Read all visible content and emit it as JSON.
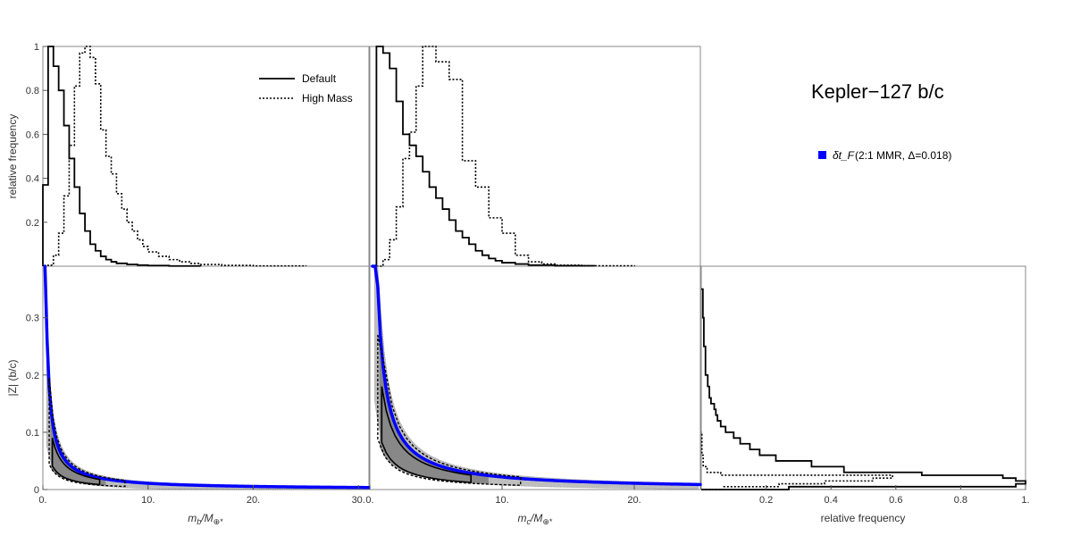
{
  "chart_data": [
    {
      "id": "hist_mb",
      "type": "histogram",
      "ylabel": "relative frequency",
      "xlim": [
        0,
        31
      ],
      "ylim": [
        0,
        1.0
      ],
      "yticks": [
        "0.2",
        "0.4",
        "0.6",
        "0.8",
        "1"
      ],
      "legend": [
        "Default",
        "High Mass"
      ],
      "series": [
        {
          "name": "Default",
          "style": "solid",
          "bins": [
            [
              0,
              0.5,
              0.37
            ],
            [
              0.5,
              1,
              1.0
            ],
            [
              1,
              1.5,
              0.91
            ],
            [
              1.5,
              2,
              0.8
            ],
            [
              2,
              2.5,
              0.64
            ],
            [
              2.5,
              3,
              0.49
            ],
            [
              3,
              3.5,
              0.36
            ],
            [
              3.5,
              4,
              0.24
            ],
            [
              4,
              4.5,
              0.16
            ],
            [
              4.5,
              5,
              0.1
            ],
            [
              5,
              5.5,
              0.07
            ],
            [
              5.5,
              6,
              0.045
            ],
            [
              6,
              6.5,
              0.03
            ],
            [
              6.5,
              7,
              0.02
            ],
            [
              7,
              8,
              0.013
            ],
            [
              8,
              9,
              0.008
            ],
            [
              9,
              10,
              0.005
            ],
            [
              10,
              12,
              0.003
            ],
            [
              12,
              15,
              0.001
            ]
          ]
        },
        {
          "name": "High Mass",
          "style": "dotted",
          "bins": [
            [
              0.5,
              1,
              0.005
            ],
            [
              1,
              1.5,
              0.05
            ],
            [
              1.5,
              2,
              0.15
            ],
            [
              2,
              2.5,
              0.32
            ],
            [
              2.5,
              3,
              0.55
            ],
            [
              3,
              3.5,
              0.82
            ],
            [
              3.5,
              4,
              0.97
            ],
            [
              4,
              4.5,
              1.0
            ],
            [
              4.5,
              5,
              0.95
            ],
            [
              5,
              5.5,
              0.83
            ],
            [
              5.5,
              6,
              0.62
            ],
            [
              6,
              6.5,
              0.5
            ],
            [
              6.5,
              7,
              0.42
            ],
            [
              7,
              7.5,
              0.33
            ],
            [
              7.5,
              8,
              0.26
            ],
            [
              8,
              8.5,
              0.2
            ],
            [
              8.5,
              9,
              0.16
            ],
            [
              9,
              9.5,
              0.12
            ],
            [
              9.5,
              10,
              0.09
            ],
            [
              10,
              11,
              0.065
            ],
            [
              11,
              12,
              0.045
            ],
            [
              12,
              13,
              0.03
            ],
            [
              13,
              14,
              0.02
            ],
            [
              14,
              15,
              0.013
            ],
            [
              15,
              17,
              0.008
            ],
            [
              17,
              20,
              0.004
            ],
            [
              20,
              25,
              0.0015
            ]
          ]
        }
      ]
    },
    {
      "id": "hist_mc",
      "type": "histogram",
      "xlim": [
        0,
        25
      ],
      "ylim": [
        0,
        1.0
      ],
      "series": [
        {
          "name": "Default",
          "style": "solid",
          "bins": [
            [
              0.5,
              1,
              1.0
            ],
            [
              1,
              1.5,
              0.97
            ],
            [
              1.5,
              2,
              0.9
            ],
            [
              2,
              2.5,
              0.75
            ],
            [
              2.5,
              3,
              0.6
            ],
            [
              3,
              3.5,
              0.55
            ],
            [
              3.5,
              4,
              0.5
            ],
            [
              4,
              4.5,
              0.43
            ],
            [
              4.5,
              5,
              0.36
            ],
            [
              5,
              5.5,
              0.31
            ],
            [
              5.5,
              6,
              0.26
            ],
            [
              6,
              6.5,
              0.21
            ],
            [
              6.5,
              7,
              0.16
            ],
            [
              7,
              7.5,
              0.13
            ],
            [
              7.5,
              8,
              0.1
            ],
            [
              8,
              8.5,
              0.07
            ],
            [
              8.5,
              9,
              0.05
            ],
            [
              9,
              9.5,
              0.035
            ],
            [
              9.5,
              10,
              0.025
            ],
            [
              10,
              11,
              0.016
            ],
            [
              11,
              12,
              0.01
            ],
            [
              12,
              14,
              0.005
            ],
            [
              14,
              17,
              0.002
            ]
          ]
        },
        {
          "name": "High Mass",
          "style": "dotted",
          "bins": [
            [
              0.5,
              1,
              0.0
            ],
            [
              1,
              1.5,
              0.03
            ],
            [
              1.5,
              2,
              0.12
            ],
            [
              2,
              2.5,
              0.27
            ],
            [
              2.5,
              3,
              0.49
            ],
            [
              3,
              3.5,
              0.61
            ],
            [
              3.5,
              4,
              0.82
            ],
            [
              4,
              5,
              1.0
            ],
            [
              5,
              6,
              0.93
            ],
            [
              6,
              7,
              0.85
            ],
            [
              7,
              8,
              0.48
            ],
            [
              8,
              9,
              0.36
            ],
            [
              9,
              10,
              0.22
            ],
            [
              10,
              11,
              0.15
            ],
            [
              11,
              12,
              0.05
            ],
            [
              12,
              13,
              0.02
            ],
            [
              13,
              14,
              0.01
            ],
            [
              14,
              16,
              0.005
            ],
            [
              16,
              20,
              0.002
            ]
          ]
        }
      ]
    },
    {
      "id": "scatter_mb_z",
      "type": "scatter",
      "xlabel_main": "m",
      "xlabel_sub": "b",
      "xlabel_rest": "/M",
      "xlabel_sub2": "⊕*",
      "ylabel": "|Z| (b/c)",
      "xlim": [
        0,
        31
      ],
      "ylim": [
        0,
        0.39
      ],
      "xticks": [
        "0.",
        "10.",
        "20.",
        "30."
      ],
      "yticks": [
        "0",
        "0.1",
        "0.2",
        "0.3"
      ]
    },
    {
      "id": "scatter_mc_z",
      "type": "scatter",
      "xlabel_main": "m",
      "xlabel_sub": "c",
      "xlabel_rest": "/M",
      "xlabel_sub2": "⊕*",
      "xlim": [
        0,
        25
      ],
      "ylim": [
        0,
        0.39
      ],
      "xticks": [
        "0.",
        "10.",
        "20."
      ]
    },
    {
      "id": "hist_z",
      "type": "histogram-horizontal",
      "xlabel": "relative frequency",
      "xlim": [
        0,
        1.0
      ],
      "ylim": [
        0,
        0.39
      ],
      "xticks": [
        "0.2",
        "0.4",
        "0.6",
        "0.8",
        "1."
      ],
      "series": [
        {
          "name": "Default",
          "style": "solid",
          "bins": [
            [
              0,
              0.005,
              0.27
            ],
            [
              0.005,
              0.01,
              0.97
            ],
            [
              0.01,
              0.015,
              1.0
            ],
            [
              0.015,
              0.02,
              0.97
            ],
            [
              0.02,
              0.025,
              0.93
            ],
            [
              0.025,
              0.03,
              0.68
            ],
            [
              0.03,
              0.04,
              0.44
            ],
            [
              0.04,
              0.05,
              0.34
            ],
            [
              0.05,
              0.06,
              0.23
            ],
            [
              0.06,
              0.07,
              0.18
            ],
            [
              0.07,
              0.08,
              0.15
            ],
            [
              0.08,
              0.09,
              0.12
            ],
            [
              0.09,
              0.1,
              0.1
            ],
            [
              0.1,
              0.11,
              0.075
            ],
            [
              0.11,
              0.12,
              0.06
            ],
            [
              0.12,
              0.13,
              0.05
            ],
            [
              0.13,
              0.14,
              0.045
            ],
            [
              0.14,
              0.15,
              0.04
            ],
            [
              0.15,
              0.16,
              0.03
            ],
            [
              0.16,
              0.18,
              0.025
            ],
            [
              0.18,
              0.2,
              0.02
            ],
            [
              0.2,
              0.25,
              0.013
            ],
            [
              0.25,
              0.3,
              0.008
            ],
            [
              0.3,
              0.35,
              0.005
            ]
          ]
        },
        {
          "name": "High Mass",
          "style": "dotted",
          "bins": [
            [
              0,
              0.005,
              0.07
            ],
            [
              0.005,
              0.01,
              0.24
            ],
            [
              0.01,
              0.015,
              0.38
            ],
            [
              0.015,
              0.02,
              0.53
            ],
            [
              0.02,
              0.025,
              0.59
            ],
            [
              0.025,
              0.03,
              0.06
            ],
            [
              0.03,
              0.04,
              0.018
            ],
            [
              0.04,
              0.06,
              0.006
            ],
            [
              0.06,
              0.1,
              0.002
            ]
          ]
        }
      ]
    }
  ],
  "title": "Kepler−127 b/c",
  "legend": {
    "color": "#0000ff",
    "symbol": "δt_F",
    "label": "(2:1 MMR, Δ=0.018)"
  },
  "colors": {
    "scatter_blue": "#0000ff",
    "scatter_gray": "#888888",
    "band_gray": "#7f7f7f"
  }
}
